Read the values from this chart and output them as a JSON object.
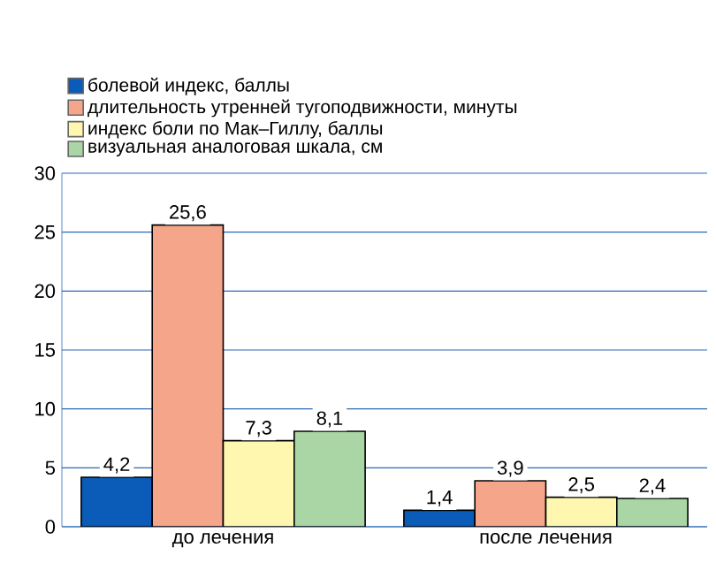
{
  "chart_data": {
    "type": "bar",
    "categories": [
      "до лечения",
      "после лечения"
    ],
    "series": [
      {
        "name": "болевой индекс, баллы",
        "color": "#0a5cb8",
        "values": [
          4.2,
          1.4
        ],
        "value_labels": [
          "4,2",
          "1,4"
        ]
      },
      {
        "name": "длительность утренней тугоподвижности, минуты",
        "color": "#f4a58a",
        "values": [
          25.6,
          3.9
        ],
        "value_labels": [
          "25,6",
          "3,9"
        ]
      },
      {
        "name": "индекс боли по Мак–Гиллу, баллы",
        "color": "#fff7b0",
        "values": [
          7.3,
          2.5
        ],
        "value_labels": [
          "7,3",
          "2,5"
        ]
      },
      {
        "name": "визуальная аналоговая шкала, см",
        "color": "#a9d6a4",
        "values": [
          8.1,
          2.4
        ],
        "value_labels": [
          "8,1",
          "2,4"
        ]
      }
    ],
    "ylim": [
      0,
      30
    ],
    "yticks": [
      0,
      5,
      10,
      15,
      20,
      25,
      30
    ],
    "grid": "y",
    "legend": "top left"
  }
}
